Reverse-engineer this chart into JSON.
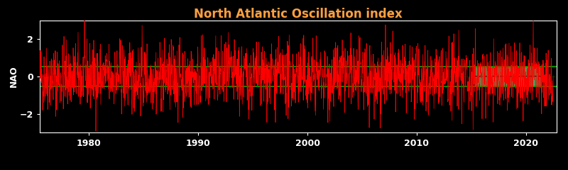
{
  "title": "North Atlantic Oscillation index",
  "title_color": "#FFA040",
  "ylabel": "NAO",
  "ylabel_color": "white",
  "background_color": "black",
  "line_color": "red",
  "line_width": 0.5,
  "green_line_color": "#00AA00",
  "green_line_value_upper": 0.52,
  "green_line_value_lower": -0.52,
  "mean_line_value": 0.0,
  "mean_line_color": "#005500",
  "mean_line_style": "dotted",
  "highlight_start": 2015.3,
  "highlight_end": 2021.3,
  "highlight_color": "#90FF90",
  "highlight_alpha": 0.6,
  "highlight_mean": 0.05,
  "highlight_mean_color": "black",
  "highlight_mean_style": "dashed",
  "xmin": 1975.5,
  "xmax": 2022.8,
  "ymin": -3.0,
  "ymax": 3.0,
  "yticks": [
    -2,
    0,
    2
  ],
  "xticks": [
    1980,
    1990,
    2000,
    2010,
    2020
  ],
  "tick_color": "white",
  "spine_color": "white",
  "title_fontsize": 12,
  "ylabel_fontsize": 9,
  "tick_fontsize": 9,
  "seed": 42,
  "n_points": 2400,
  "start_year": 1975.5,
  "end_year": 2022.5
}
